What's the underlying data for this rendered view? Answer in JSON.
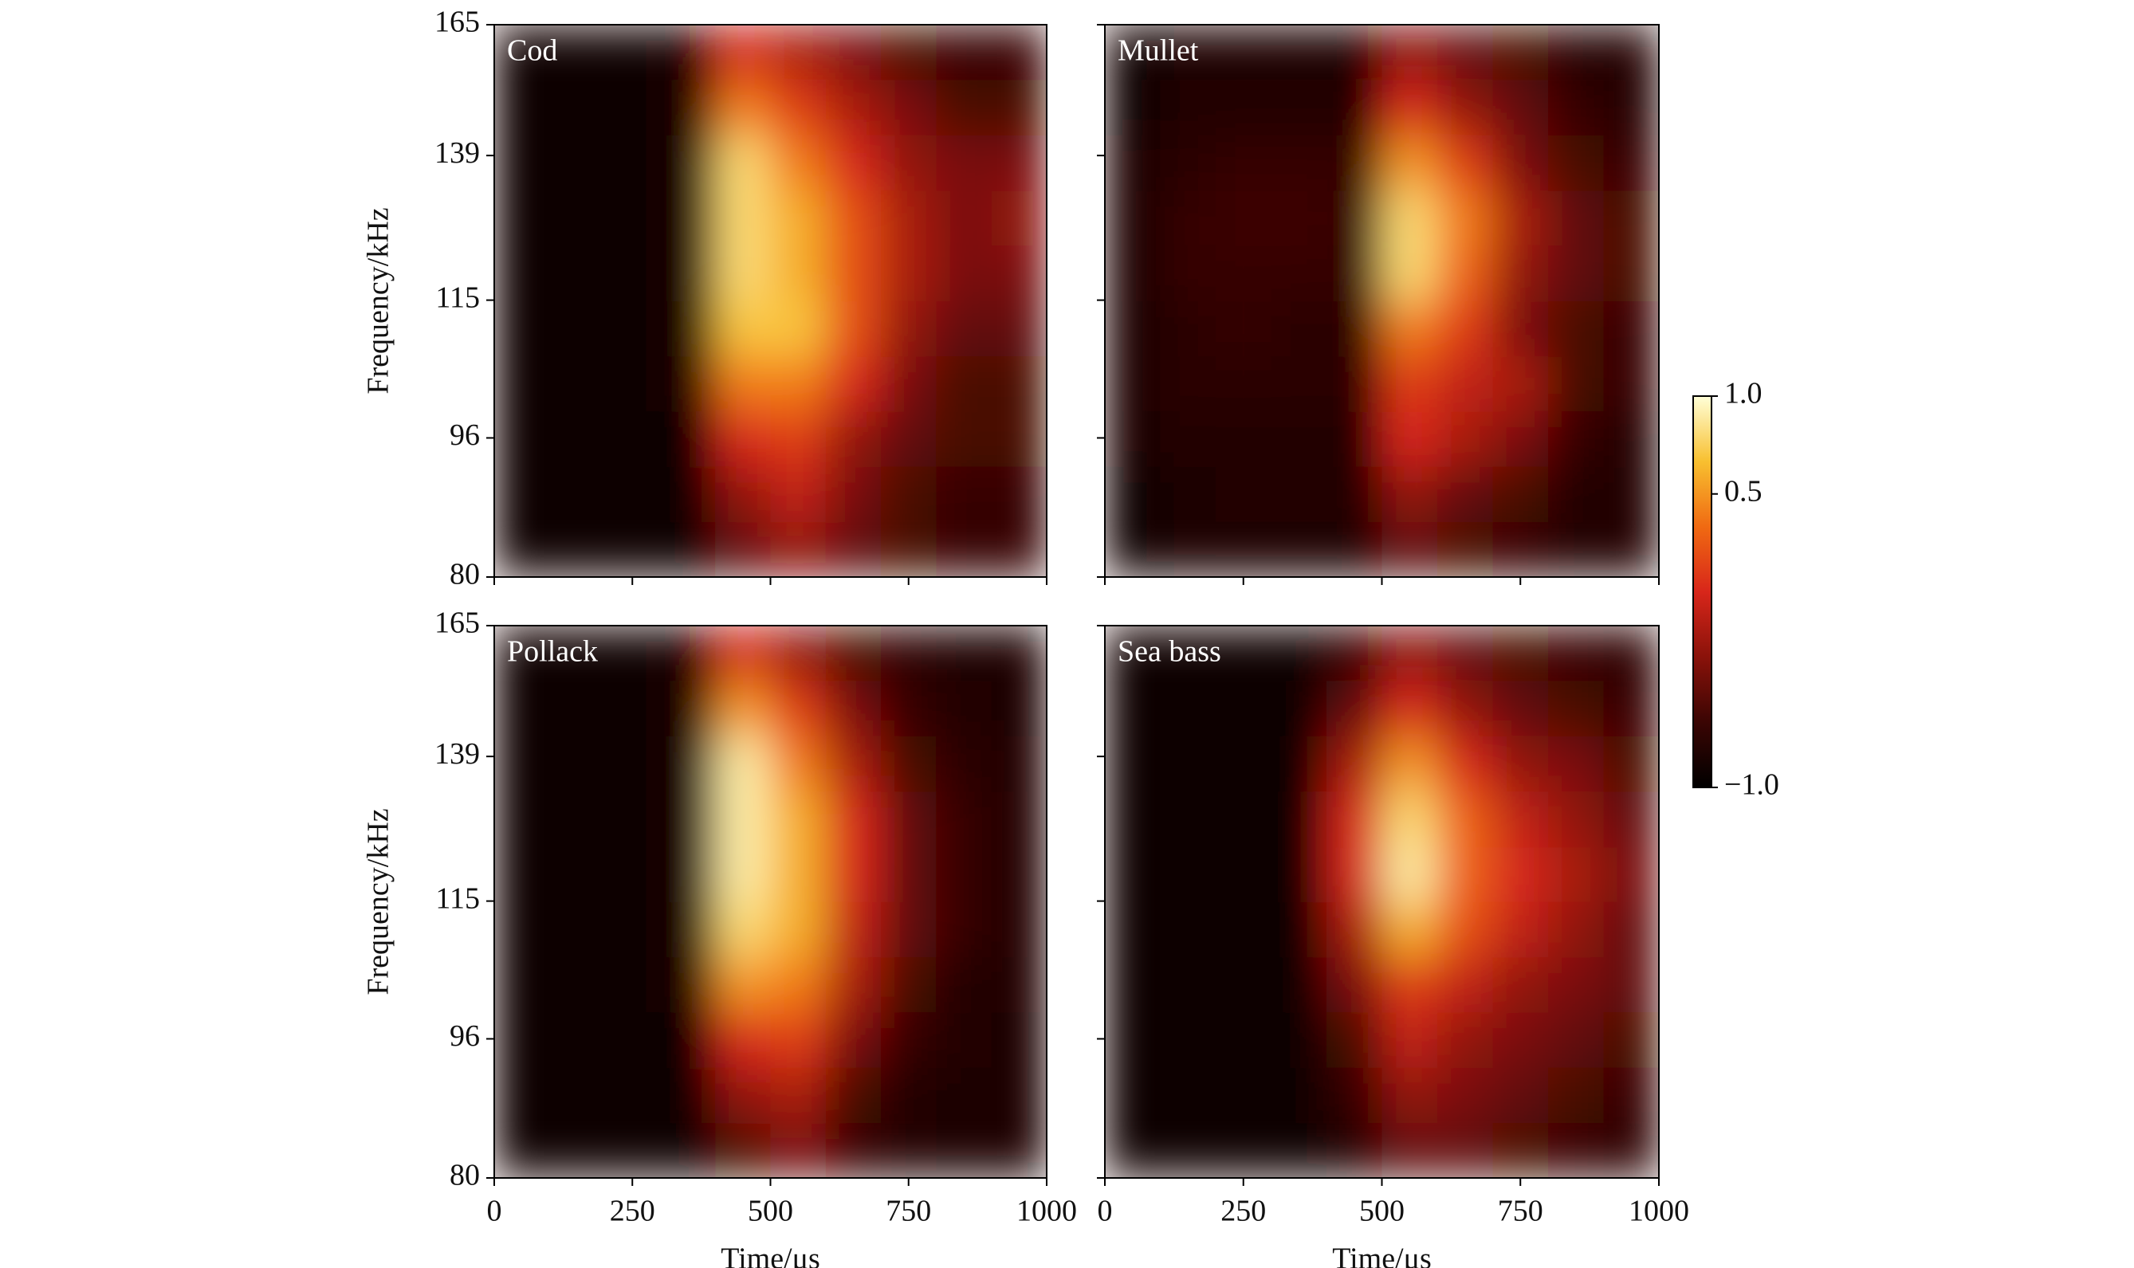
{
  "chart_data": [
    {
      "type": "heatmap",
      "title": "Cod",
      "ylabel": "Frequency/kHz",
      "show_xticklabels": false,
      "show_yticklabels": true,
      "x": [
        50,
        150,
        250,
        350,
        450,
        550,
        650,
        750,
        850,
        950
      ],
      "y": [
        82.9,
        89.2,
        95.9,
        103.1,
        110.8,
        119.1,
        128.1,
        137.7,
        148.1,
        159.2
      ],
      "z": [
        [
          -0.9,
          -0.9,
          -0.9,
          -0.9,
          -0.5,
          -0.3,
          -0.5,
          -0.6,
          -0.7,
          -0.7
        ],
        [
          -0.9,
          -0.9,
          -0.9,
          -0.9,
          -0.3,
          -0.1,
          -0.4,
          -0.6,
          -0.7,
          -0.7
        ],
        [
          -0.9,
          -0.9,
          -0.9,
          -0.9,
          0.0,
          0.1,
          -0.3,
          -0.5,
          -0.6,
          -0.6
        ],
        [
          -0.9,
          -0.9,
          -0.9,
          -0.85,
          0.4,
          0.4,
          0.0,
          -0.4,
          -0.6,
          -0.6
        ],
        [
          -0.9,
          -0.9,
          -0.9,
          -0.85,
          0.7,
          0.7,
          0.2,
          -0.3,
          -0.5,
          -0.5
        ],
        [
          -0.9,
          -0.9,
          -0.9,
          -0.85,
          0.8,
          0.6,
          0.2,
          -0.2,
          -0.4,
          -0.4
        ],
        [
          -0.9,
          -0.9,
          -0.9,
          -0.85,
          0.8,
          0.6,
          0.2,
          -0.2,
          -0.4,
          -0.3
        ],
        [
          -0.9,
          -0.9,
          -0.9,
          -0.85,
          0.8,
          0.4,
          0.0,
          -0.3,
          -0.4,
          -0.4
        ],
        [
          -0.9,
          -0.9,
          -0.9,
          -0.85,
          0.4,
          0.1,
          -0.2,
          -0.4,
          -0.6,
          -0.6
        ],
        [
          -0.9,
          -0.9,
          -0.9,
          -0.85,
          0.0,
          -0.2,
          -0.4,
          -0.6,
          -0.7,
          -0.7
        ]
      ],
      "xlim": [
        0,
        1000
      ],
      "ylim": [
        80,
        165
      ],
      "ylog": true,
      "xticks": [
        0,
        250,
        500,
        750,
        1000
      ],
      "yticks": [
        80,
        96,
        115,
        139,
        165
      ]
    },
    {
      "type": "heatmap",
      "title": "Mullet",
      "show_xticklabels": false,
      "show_yticklabels": false,
      "x": [
        50,
        150,
        250,
        350,
        450,
        550,
        650,
        750,
        850,
        950
      ],
      "y": [
        82.9,
        89.2,
        95.9,
        103.1,
        110.8,
        119.1,
        128.1,
        137.7,
        148.1,
        159.2
      ],
      "z": [
        [
          -0.9,
          -0.85,
          -0.85,
          -0.85,
          -0.85,
          -0.5,
          -0.6,
          -0.7,
          -0.8,
          -0.8
        ],
        [
          -0.9,
          -0.85,
          -0.8,
          -0.8,
          -0.8,
          -0.3,
          -0.5,
          -0.6,
          -0.8,
          -0.8
        ],
        [
          -0.85,
          -0.8,
          -0.8,
          -0.8,
          -0.8,
          0.0,
          -0.2,
          -0.4,
          -0.7,
          -0.8
        ],
        [
          -0.85,
          -0.75,
          -0.75,
          -0.75,
          -0.75,
          0.1,
          -0.1,
          -0.2,
          -0.6,
          -0.7
        ],
        [
          -0.85,
          -0.75,
          -0.7,
          -0.75,
          -0.75,
          0.4,
          0.1,
          -0.4,
          -0.6,
          -0.7
        ],
        [
          -0.85,
          -0.7,
          -0.7,
          -0.7,
          -0.7,
          0.8,
          0.3,
          -0.3,
          -0.5,
          -0.6
        ],
        [
          -0.85,
          -0.7,
          -0.65,
          -0.65,
          -0.7,
          0.8,
          0.4,
          -0.2,
          -0.5,
          -0.6
        ],
        [
          -0.85,
          -0.75,
          -0.7,
          -0.7,
          -0.7,
          0.5,
          0.1,
          -0.4,
          -0.6,
          -0.7
        ],
        [
          -0.9,
          -0.8,
          -0.8,
          -0.8,
          -0.8,
          0.0,
          -0.3,
          -0.5,
          -0.7,
          -0.8
        ],
        [
          -0.9,
          -0.85,
          -0.85,
          -0.85,
          -0.85,
          -0.3,
          -0.5,
          -0.6,
          -0.8,
          -0.8
        ]
      ],
      "xlim": [
        0,
        1000
      ],
      "ylim": [
        80,
        165
      ],
      "ylog": true,
      "xticks": [
        0,
        250,
        500,
        750,
        1000
      ],
      "yticks": [
        80,
        96,
        115,
        139,
        165
      ]
    },
    {
      "type": "heatmap",
      "title": "Pollack",
      "xlabel": "Time/μs",
      "ylabel": "Frequency/kHz",
      "show_xticklabels": true,
      "show_yticklabels": true,
      "x": [
        50,
        150,
        250,
        350,
        450,
        550,
        650,
        750,
        850,
        950
      ],
      "y": [
        82.9,
        89.2,
        95.9,
        103.1,
        110.8,
        119.1,
        128.1,
        137.7,
        148.1,
        159.2
      ],
      "z": [
        [
          -0.9,
          -0.9,
          -0.9,
          -0.9,
          -0.6,
          -0.4,
          -0.7,
          -0.8,
          -0.85,
          -0.85
        ],
        [
          -0.9,
          -0.9,
          -0.9,
          -0.9,
          -0.3,
          -0.2,
          -0.6,
          -0.8,
          -0.85,
          -0.85
        ],
        [
          -0.9,
          -0.9,
          -0.9,
          -0.9,
          0.0,
          0.1,
          -0.4,
          -0.7,
          -0.8,
          -0.85
        ],
        [
          -0.9,
          -0.9,
          -0.9,
          -0.85,
          0.5,
          0.4,
          -0.2,
          -0.6,
          -0.8,
          -0.8
        ],
        [
          -0.9,
          -0.9,
          -0.9,
          -0.85,
          0.8,
          0.6,
          -0.1,
          -0.5,
          -0.7,
          -0.8
        ],
        [
          -0.9,
          -0.9,
          -0.9,
          -0.85,
          0.9,
          0.6,
          0.0,
          -0.5,
          -0.7,
          -0.8
        ],
        [
          -0.9,
          -0.9,
          -0.9,
          -0.85,
          0.9,
          0.6,
          0.0,
          -0.5,
          -0.7,
          -0.8
        ],
        [
          -0.9,
          -0.9,
          -0.9,
          -0.85,
          0.9,
          0.4,
          -0.2,
          -0.6,
          -0.75,
          -0.8
        ],
        [
          -0.9,
          -0.9,
          -0.9,
          -0.85,
          0.5,
          0.1,
          -0.4,
          -0.7,
          -0.8,
          -0.85
        ],
        [
          -0.9,
          -0.9,
          -0.9,
          -0.85,
          0.0,
          -0.3,
          -0.6,
          -0.75,
          -0.85,
          -0.85
        ]
      ],
      "xlim": [
        0,
        1000
      ],
      "ylim": [
        80,
        165
      ],
      "ylog": true,
      "xticks": [
        0,
        250,
        500,
        750,
        1000
      ],
      "yticks": [
        80,
        96,
        115,
        139,
        165
      ]
    },
    {
      "type": "heatmap",
      "title": "Sea bass",
      "xlabel": "Time/μs",
      "show_xticklabels": true,
      "show_yticklabels": false,
      "x": [
        50,
        150,
        250,
        350,
        450,
        550,
        650,
        750,
        850,
        950
      ],
      "y": [
        82.9,
        89.2,
        95.9,
        103.1,
        110.8,
        119.1,
        128.1,
        137.7,
        148.1,
        159.2
      ],
      "z": [
        [
          -0.9,
          -0.9,
          -0.9,
          -0.9,
          -0.8,
          -0.5,
          -0.5,
          -0.6,
          -0.7,
          -0.75
        ],
        [
          -0.9,
          -0.9,
          -0.9,
          -0.9,
          -0.7,
          -0.3,
          -0.4,
          -0.5,
          -0.6,
          -0.7
        ],
        [
          -0.9,
          -0.9,
          -0.9,
          -0.9,
          -0.6,
          -0.1,
          -0.3,
          -0.4,
          -0.5,
          -0.6
        ],
        [
          -0.9,
          -0.9,
          -0.9,
          -0.9,
          -0.4,
          0.1,
          -0.1,
          -0.3,
          -0.4,
          -0.5
        ],
        [
          -0.9,
          -0.9,
          -0.9,
          -0.9,
          -0.2,
          0.6,
          0.2,
          -0.1,
          -0.3,
          -0.5
        ],
        [
          -0.9,
          -0.9,
          -0.9,
          -0.9,
          0.0,
          0.9,
          0.3,
          0.0,
          -0.2,
          -0.4
        ],
        [
          -0.9,
          -0.9,
          -0.9,
          -0.9,
          0.0,
          0.8,
          0.3,
          -0.1,
          -0.3,
          -0.5
        ],
        [
          -0.9,
          -0.9,
          -0.9,
          -0.9,
          -0.2,
          0.5,
          0.0,
          -0.3,
          -0.4,
          -0.6
        ],
        [
          -0.9,
          -0.9,
          -0.9,
          -0.9,
          -0.5,
          0.0,
          -0.3,
          -0.5,
          -0.6,
          -0.7
        ],
        [
          -0.9,
          -0.9,
          -0.9,
          -0.9,
          -0.7,
          -0.3,
          -0.5,
          -0.6,
          -0.7,
          -0.75
        ]
      ],
      "xlim": [
        0,
        1000
      ],
      "ylim": [
        80,
        165
      ],
      "ylog": true,
      "xticks": [
        0,
        250,
        500,
        750,
        1000
      ],
      "yticks": [
        80,
        96,
        115,
        139,
        165
      ]
    }
  ],
  "colorbar": {
    "clim": [
      -1,
      1
    ],
    "colors": [
      "#000000",
      "#3a0503",
      "#8a120a",
      "#d8261a",
      "#f06a12",
      "#f8c030",
      "#ffffd8"
    ],
    "ticks": [
      {
        "value": 1,
        "label": "1.0"
      },
      {
        "value": 0.5,
        "label": "0.5"
      },
      {
        "value": -1,
        "label": "−1.0"
      }
    ]
  }
}
